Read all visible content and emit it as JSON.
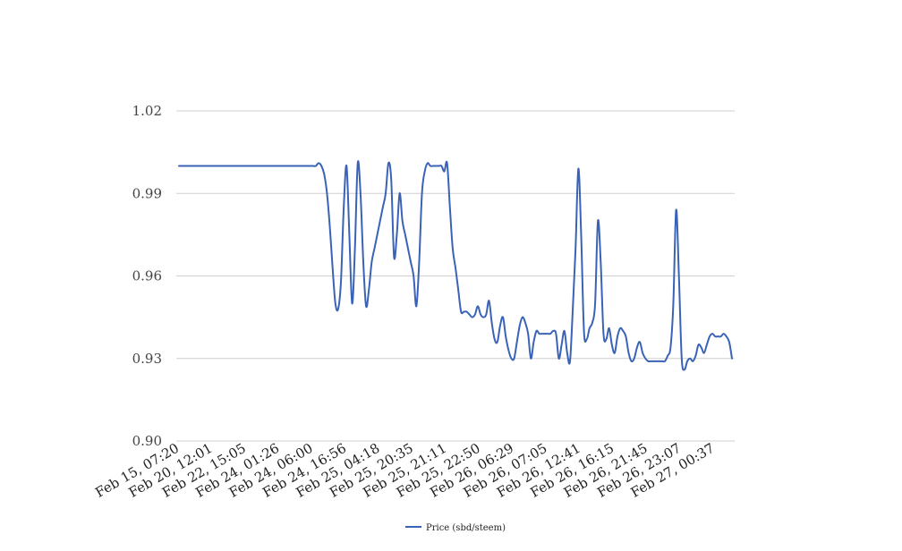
{
  "chart_data": {
    "type": "line",
    "title": "",
    "xlabel": "",
    "ylabel": "",
    "ylim": [
      0.9,
      1.02
    ],
    "y_ticks": [
      "0.90",
      "0.93",
      "0.96",
      "0.99",
      "1.02"
    ],
    "x_tick_labels": [
      "Feb 15, 07:20",
      "Feb 20, 12:01",
      "Feb 22, 15:05",
      "Feb 24, 01:26",
      "Feb 24, 06:00",
      "Feb 24, 16:56",
      "Feb 25, 04:18",
      "Feb 25, 20:35",
      "Feb 25, 21:11",
      "Feb 25, 22:50",
      "Feb 26, 06:29",
      "Feb 26, 07:05",
      "Feb 26, 12:41",
      "Feb 26, 16:15",
      "Feb 26, 21:45",
      "Feb 26, 23:07",
      "Feb 27, 00:37"
    ],
    "grid": "horizontal",
    "legend_position": "bottom-center",
    "color": "#3a63b8",
    "series": [
      {
        "name": "Price (sbd/steem)",
        "values": [
          1.0,
          1.0,
          1.0,
          1.0,
          1.0,
          1.0,
          1.0,
          1.0,
          1.0,
          1.0,
          1.0,
          1.0,
          1.0,
          1.0,
          1.0,
          1.0,
          1.0,
          1.0,
          1.0,
          1.0,
          1.0,
          1.0,
          1.0,
          1.0,
          1.0,
          1.0,
          1.0,
          1.0,
          1.0,
          1.0,
          1.0,
          1.0,
          1.0,
          1.0,
          1.0,
          1.0,
          1.0,
          1.0,
          1.0,
          1.0,
          1.0,
          1.0,
          1.0,
          1.0,
          1.0,
          1.0,
          1.0,
          1.0,
          1.0,
          1.0,
          1.001,
          1.0,
          0.997,
          0.99,
          0.978,
          0.963,
          0.95,
          0.948,
          0.958,
          0.985,
          1.0,
          0.975,
          0.95,
          0.97,
          1.001,
          0.99,
          0.965,
          0.949,
          0.955,
          0.965,
          0.97,
          0.975,
          0.98,
          0.985,
          0.99,
          1.001,
          0.995,
          0.967,
          0.975,
          0.99,
          0.98,
          0.975,
          0.97,
          0.965,
          0.96,
          0.949,
          0.965,
          0.99,
          0.998,
          1.001,
          1.0,
          1.0,
          1.0,
          1.0,
          1.0,
          0.998,
          1.001,
          0.985,
          0.97,
          0.963,
          0.955,
          0.947,
          0.947,
          0.947,
          0.946,
          0.945,
          0.946,
          0.949,
          0.946,
          0.945,
          0.946,
          0.951,
          0.943,
          0.937,
          0.936,
          0.942,
          0.945,
          0.938,
          0.933,
          0.93,
          0.93,
          0.936,
          0.942,
          0.945,
          0.943,
          0.939,
          0.93,
          0.936,
          0.94,
          0.939,
          0.939,
          0.939,
          0.939,
          0.939,
          0.94,
          0.939,
          0.93,
          0.935,
          0.94,
          0.932,
          0.929,
          0.948,
          0.97,
          0.999,
          0.975,
          0.94,
          0.937,
          0.941,
          0.943,
          0.95,
          0.98,
          0.965,
          0.939,
          0.937,
          0.941,
          0.935,
          0.932,
          0.938,
          0.941,
          0.94,
          0.938,
          0.932,
          0.929,
          0.93,
          0.934,
          0.936,
          0.932,
          0.93,
          0.929,
          0.929,
          0.929,
          0.929,
          0.929,
          0.929,
          0.929,
          0.931,
          0.934,
          0.95,
          0.984,
          0.96,
          0.93,
          0.926,
          0.929,
          0.93,
          0.929,
          0.931,
          0.935,
          0.934,
          0.932,
          0.935,
          0.938,
          0.939,
          0.938,
          0.938,
          0.938,
          0.939,
          0.938,
          0.936,
          0.93
        ]
      }
    ]
  }
}
